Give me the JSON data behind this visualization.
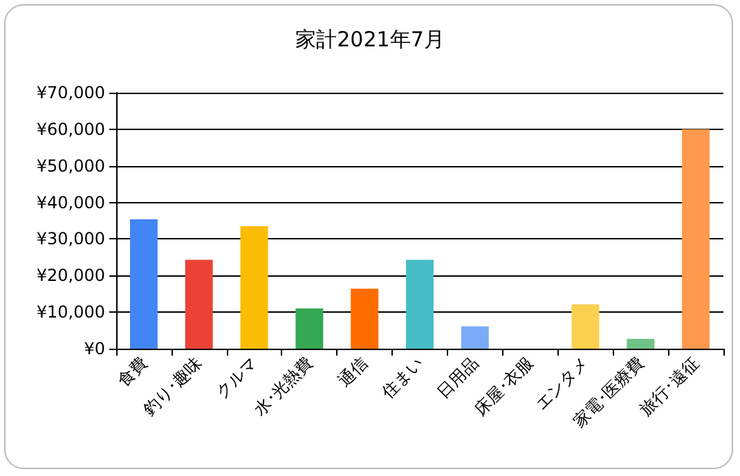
{
  "chart_data": {
    "type": "bar",
    "title": "家計2021年7月",
    "categories": [
      "食費",
      "釣り･趣味",
      "クルマ",
      "水･光熱費",
      "通信",
      "住まい",
      "日用品",
      "床屋･衣服",
      "エンタメ",
      "家電･医療費",
      "旅行･遠征"
    ],
    "values": [
      35400,
      24300,
      33500,
      11000,
      16400,
      24300,
      6100,
      0,
      12100,
      2700,
      60000
    ],
    "colors": [
      "#4285f4",
      "#ea4335",
      "#fbbc04",
      "#34a853",
      "#ff6d01",
      "#46bdc6",
      "#7baaf7",
      "#f07b72",
      "#fcd04f",
      "#71c287",
      "#ff994d"
    ],
    "ylim": [
      0,
      70000
    ],
    "yticks": [
      {
        "value": 0,
        "label": "¥0"
      },
      {
        "value": 10000,
        "label": "¥10,000"
      },
      {
        "value": 20000,
        "label": "¥20,000"
      },
      {
        "value": 30000,
        "label": "¥30,000"
      },
      {
        "value": 40000,
        "label": "¥40,000"
      },
      {
        "value": 50000,
        "label": "¥50,000"
      },
      {
        "value": 60000,
        "label": "¥60,000"
      },
      {
        "value": 70000,
        "label": "¥70,000"
      }
    ],
    "grid": "y"
  }
}
